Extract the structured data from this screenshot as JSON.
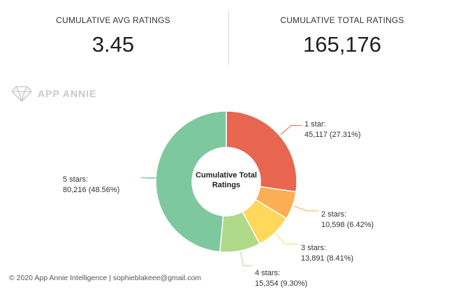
{
  "stats": {
    "avg_label": "CUMULATIVE AVG RATINGS",
    "avg_value": "3.45",
    "total_label": "CUMULATIVE TOTAL RATINGS",
    "total_value": "165,176"
  },
  "watermark": "APP ANNIE",
  "footer": "© 2020 App Annie Intelligence | sophieblakeee@gmail.com",
  "chart_data": {
    "type": "pie",
    "title": "Cumulative Total Ratings",
    "slices": [
      {
        "label": "1 star:",
        "value_text": "45,117 (27.31%)",
        "value": 45117,
        "percent": 27.31,
        "color": "#e8654f"
      },
      {
        "label": "2 stars:",
        "value_text": "10,598 (6.42%)",
        "value": 10598,
        "percent": 6.42,
        "color": "#fcae52"
      },
      {
        "label": "3 stars:",
        "value_text": "13,891 (8.41%)",
        "value": 13891,
        "percent": 8.41,
        "color": "#ffd75a"
      },
      {
        "label": "4 stars:",
        "value_text": "15,354 (9.30%)",
        "value": 15354,
        "percent": 9.3,
        "color": "#b0d98a"
      },
      {
        "label": "5 stars:",
        "value_text": "80,216 (48.56%)",
        "value": 80216,
        "percent": 48.56,
        "color": "#7ec8a0"
      }
    ]
  }
}
